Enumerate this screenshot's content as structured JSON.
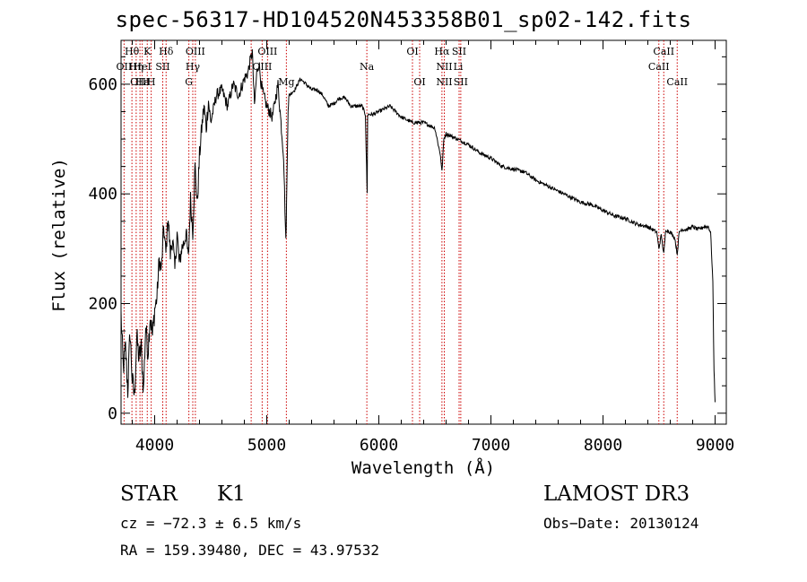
{
  "chart_data": {
    "type": "line",
    "title": "spec-56317-HD104520N453358B01_sp02-142.fits",
    "xlabel": "Wavelength (Å)",
    "ylabel": "Flux (relative)",
    "xlim": [
      3700,
      9100
    ],
    "ylim": [
      -20,
      680
    ],
    "xticks": [
      4000,
      5000,
      6000,
      7000,
      8000,
      9000
    ],
    "yticks": [
      0,
      200,
      400,
      600
    ],
    "grid": false,
    "series": [
      {
        "name": "spectrum",
        "x": [
          3700,
          3720,
          3740,
          3760,
          3780,
          3800,
          3820,
          3840,
          3860,
          3880,
          3900,
          3920,
          3940,
          3960,
          3980,
          4000,
          4020,
          4040,
          4060,
          4080,
          4100,
          4120,
          4140,
          4160,
          4180,
          4200,
          4220,
          4240,
          4260,
          4280,
          4300,
          4320,
          4340,
          4360,
          4380,
          4400,
          4420,
          4440,
          4460,
          4480,
          4500,
          4550,
          4600,
          4650,
          4700,
          4750,
          4800,
          4830,
          4850,
          4870,
          4890,
          4910,
          4930,
          4950,
          4970,
          5000,
          5050,
          5100,
          5150,
          5170,
          5180,
          5190,
          5200,
          5250,
          5300,
          5350,
          5400,
          5450,
          5500,
          5550,
          5600,
          5650,
          5700,
          5750,
          5800,
          5850,
          5880,
          5890,
          5896,
          5900,
          5950,
          6000,
          6100,
          6200,
          6300,
          6400,
          6500,
          6550,
          6563,
          6580,
          6600,
          6700,
          6800,
          6900,
          7000,
          7100,
          7200,
          7300,
          7400,
          7500,
          7600,
          7700,
          7800,
          7900,
          8000,
          8100,
          8200,
          8300,
          8400,
          8480,
          8498,
          8520,
          8542,
          8560,
          8600,
          8640,
          8662,
          8680,
          8700,
          8750,
          8800,
          8850,
          8900,
          8940,
          8960,
          8980,
          8990,
          9000
        ],
        "y": [
          180,
          80,
          120,
          40,
          150,
          60,
          30,
          140,
          100,
          120,
          40,
          160,
          110,
          180,
          140,
          190,
          210,
          280,
          260,
          340,
          290,
          360,
          290,
          320,
          260,
          330,
          270,
          300,
          310,
          330,
          280,
          390,
          330,
          450,
          380,
          470,
          520,
          560,
          520,
          570,
          530,
          580,
          590,
          560,
          600,
          580,
          610,
          620,
          640,
          660,
          560,
          620,
          640,
          600,
          580,
          560,
          540,
          600,
          470,
          310,
          420,
          560,
          580,
          590,
          610,
          600,
          590,
          590,
          580,
          560,
          565,
          575,
          575,
          560,
          560,
          560,
          545,
          450,
          400,
          545,
          545,
          550,
          560,
          540,
          530,
          530,
          520,
          470,
          440,
          500,
          510,
          500,
          490,
          475,
          465,
          450,
          445,
          440,
          425,
          415,
          405,
          395,
          385,
          380,
          370,
          360,
          355,
          345,
          340,
          330,
          300,
          325,
          290,
          335,
          330,
          320,
          290,
          330,
          335,
          335,
          340,
          335,
          340,
          340,
          330,
          240,
          80,
          20
        ]
      }
    ],
    "line_labels": [
      {
        "text": "Hθ",
        "x": 3797,
        "row": 1,
        "off": 0,
        "desc": false
      },
      {
        "text": "OII",
        "x": 3727,
        "row": 2,
        "off": 0,
        "desc": false
      },
      {
        "text": "Hη",
        "x": 3835,
        "row": 2,
        "off": 0,
        "desc": false
      },
      {
        "text": "OIII",
        "x": 3869,
        "row": 3,
        "off": 0,
        "desc": false
      },
      {
        "text": "Hε",
        "x": 3889,
        "row": 3,
        "off": 0,
        "desc": false
      },
      {
        "text": "K",
        "x": 3934,
        "row": 1,
        "off": 0,
        "desc": false
      },
      {
        "text": "HeI",
        "x": 3889,
        "row": 2,
        "off": 0,
        "desc": false
      },
      {
        "text": "H",
        "x": 3969,
        "row": 3,
        "off": 0,
        "desc": false
      },
      {
        "text": "Hδ",
        "x": 4102,
        "row": 1,
        "off": 0,
        "desc": false
      },
      {
        "text": "SII",
        "x": 4072,
        "row": 2,
        "off": 0,
        "desc": false
      },
      {
        "text": "OIII",
        "x": 4363,
        "row": 1,
        "off": 0,
        "desc": false
      },
      {
        "text": "Hγ",
        "x": 4340,
        "row": 2,
        "off": 0,
        "desc": false
      },
      {
        "text": "G",
        "x": 4305,
        "row": 3,
        "off": 0,
        "desc": false
      },
      {
        "text": "OIII",
        "x": 5007,
        "row": 1,
        "off": 0,
        "desc": false
      },
      {
        "text": "OIII",
        "x": 4959,
        "row": 2,
        "off": 0,
        "desc": false
      },
      {
        "text": "Mg",
        "x": 5175,
        "row": 3,
        "off": 0,
        "desc": false
      },
      {
        "text": "Na",
        "x": 5893,
        "row": 2,
        "off": 0,
        "desc": false
      },
      {
        "text": "OI",
        "x": 6300,
        "row": 1,
        "off": 0,
        "desc": false
      },
      {
        "text": "OI",
        "x": 6364,
        "row": 3,
        "off": 0,
        "desc": false
      },
      {
        "text": "Hα",
        "x": 6563,
        "row": 1,
        "off": 0,
        "desc": false
      },
      {
        "text": "SII",
        "x": 6716,
        "row": 1,
        "off": 0,
        "desc": false
      },
      {
        "text": "NII",
        "x": 6584,
        "row": 2,
        "off": 0,
        "desc": false
      },
      {
        "text": "Li",
        "x": 6708,
        "row": 2,
        "off": 0,
        "desc": false
      },
      {
        "text": "NII",
        "x": 6584,
        "row": 3,
        "off": 0,
        "desc": false
      },
      {
        "text": "SII",
        "x": 6731,
        "row": 3,
        "off": 0,
        "desc": false
      },
      {
        "text": "CaII",
        "x": 8542,
        "row": 1,
        "off": 0,
        "desc": false
      },
      {
        "text": "CaII",
        "x": 8498,
        "row": 2,
        "off": 0,
        "desc": false
      },
      {
        "text": "CaII",
        "x": 8662,
        "row": 3,
        "off": 0,
        "desc": false
      }
    ],
    "line_markers": [
      3727,
      3797,
      3835,
      3869,
      3889,
      3934,
      3969,
      4072,
      4102,
      4305,
      4340,
      4363,
      4861,
      4959,
      5007,
      5175,
      5893,
      6300,
      6364,
      6563,
      6584,
      6716,
      6731,
      8498,
      8542,
      8662
    ]
  },
  "info": {
    "object_class": "STAR",
    "subclass": "K1",
    "survey": "LAMOST DR3",
    "cz": "cz = −72.3 ± 6.5 km/s",
    "obs_date": "Obs−Date: 20130124",
    "coords": "RA = 159.39480, DEC =  43.97532"
  },
  "colors": {
    "spectrum": "#000000",
    "marker": "#cc0000",
    "axes": "#000000"
  }
}
